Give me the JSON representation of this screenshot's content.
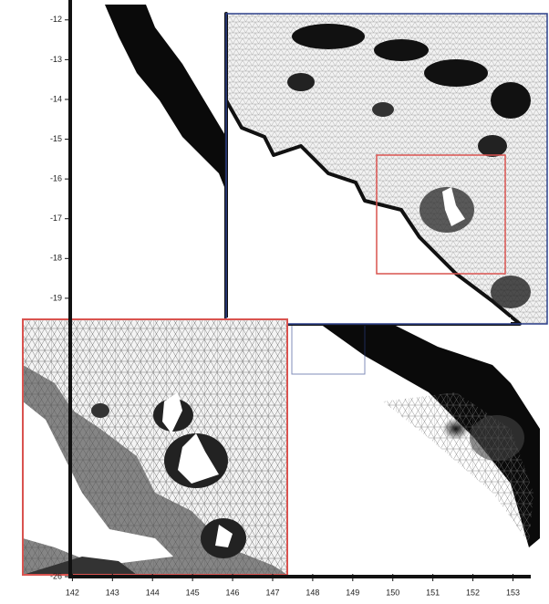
{
  "chart_data": {
    "type": "map",
    "xlim": [
      141.9,
      153.9
    ],
    "ylim": [
      -26,
      -11.5
    ],
    "xticks": [
      142,
      143,
      144,
      145,
      146,
      147,
      148,
      149,
      150,
      151,
      152,
      153
    ],
    "yticks": [
      -12,
      -13,
      -14,
      -15,
      -16,
      -17,
      -18,
      -19,
      -26
    ]
  }
}
